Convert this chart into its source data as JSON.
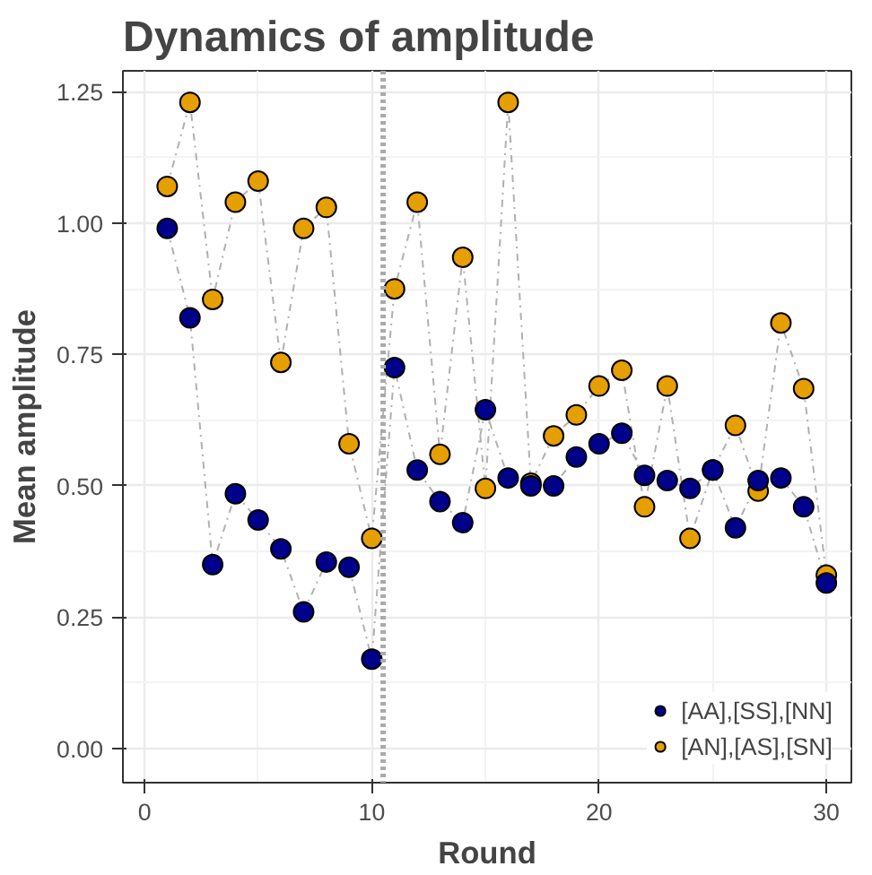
{
  "chart_data": {
    "type": "line",
    "title": "Dynamics of amplitude",
    "xlabel": "Round",
    "ylabel": "Mean amplitude",
    "x": [
      1,
      2,
      3,
      4,
      5,
      6,
      7,
      8,
      9,
      10,
      11,
      12,
      13,
      14,
      15,
      16,
      17,
      18,
      19,
      20,
      21,
      22,
      23,
      24,
      25,
      26,
      27,
      28,
      29,
      30
    ],
    "series": [
      {
        "name": "[AA],[SS],[NN]",
        "color": "#00008b",
        "values": [
          0.99,
          0.82,
          0.35,
          0.485,
          0.435,
          0.38,
          0.26,
          0.355,
          0.345,
          0.17,
          0.725,
          0.53,
          0.47,
          0.43,
          0.645,
          0.515,
          0.5,
          0.5,
          0.555,
          0.58,
          0.6,
          0.52,
          0.51,
          0.495,
          0.53,
          0.42,
          0.51,
          0.515,
          0.46,
          0.315
        ]
      },
      {
        "name": "[AN],[AS],[SN]",
        "color": "#e69f00",
        "values": [
          1.07,
          1.23,
          0.855,
          1.04,
          1.08,
          0.735,
          0.99,
          1.03,
          0.58,
          0.4,
          0.875,
          1.04,
          0.56,
          0.935,
          0.495,
          1.23,
          0.505,
          0.595,
          0.635,
          0.69,
          0.72,
          0.46,
          0.69,
          0.4,
          0.53,
          0.615,
          0.49,
          0.81,
          0.685,
          0.33
        ]
      }
    ],
    "xlim": [
      -0.95,
      31.1
    ],
    "ylim": [
      -0.065,
      1.29
    ],
    "xticks": [
      0,
      10,
      20,
      30
    ],
    "yticks": [
      {
        "value": 0,
        "label": "0.00"
      },
      {
        "value": 0.25,
        "label": "0.25"
      },
      {
        "value": 0.5,
        "label": "0.50"
      },
      {
        "value": 0.75,
        "label": "0.75"
      },
      {
        "value": 1,
        "label": "1.00"
      },
      {
        "value": 1.25,
        "label": "1.25"
      }
    ],
    "ref_lines": [
      {
        "axis": "x",
        "value": 10.5,
        "color": "#aaaaaa",
        "line_style": "dotted"
      }
    ],
    "grid": true,
    "legend": "bottom right",
    "marker": "circle",
    "line_style": "dashed"
  }
}
